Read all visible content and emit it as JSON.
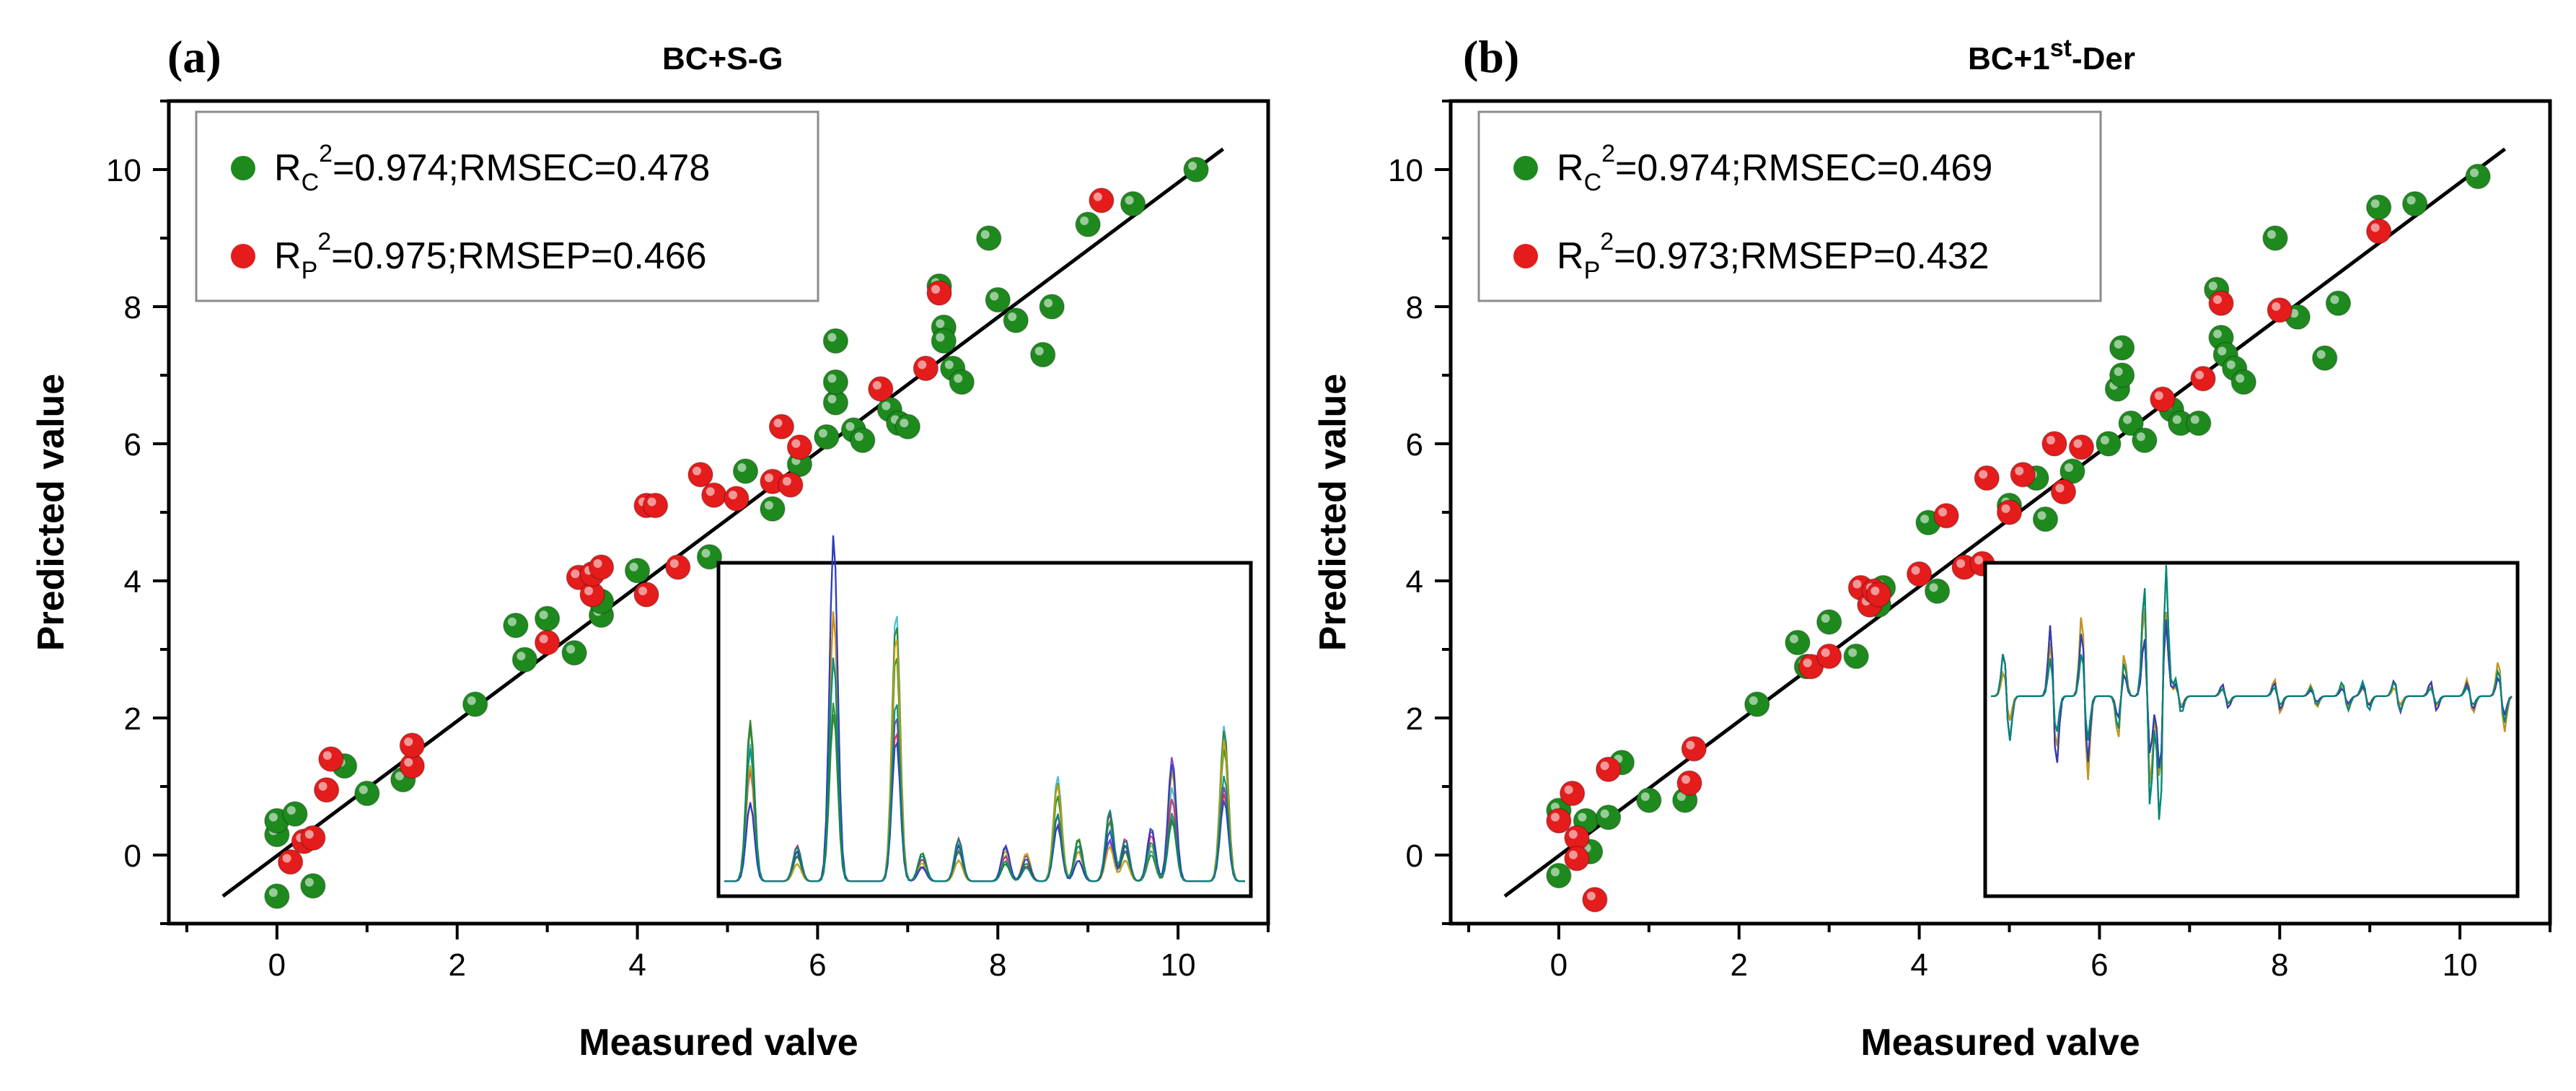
{
  "colors": {
    "calibration": "#1e8a1e",
    "prediction": "#e41c1c",
    "fit_line": "#000000",
    "frame": "#000000",
    "legend_border": "#8c8c8c"
  },
  "chart_data": [
    {
      "type": "scatter",
      "panel_letter": "(a)",
      "title": "BC+S-G",
      "xlabel": "Measured valve",
      "ylabel": "Predicted value",
      "xlim": [
        -1.2,
        11.0
      ],
      "ylim": [
        -1.0,
        11.0
      ],
      "xticks": [
        "0",
        "2",
        "4",
        "6",
        "8",
        "10"
      ],
      "yticks": [
        "0",
        "2",
        "4",
        "6",
        "8",
        "10"
      ],
      "fit_line": {
        "x": [
          -0.6,
          10.5
        ],
        "y": [
          -0.6,
          10.3
        ]
      },
      "legend": [
        {
          "series": "calibration",
          "label_main": "R",
          "label_sub": "C",
          "label_sup": "2",
          "label_rest": "=0.974;RMSEC=0.478"
        },
        {
          "series": "prediction",
          "label_main": "R",
          "label_sub": "P",
          "label_sup": "2",
          "label_rest": "=0.975;RMSEP=0.466"
        }
      ],
      "series": [
        {
          "name": "calibration",
          "color": "#1e8a1e",
          "points": [
            [
              0.0,
              0.3
            ],
            [
              0.0,
              0.5
            ],
            [
              0.2,
              0.6
            ],
            [
              0.0,
              -0.6
            ],
            [
              0.4,
              -0.45
            ],
            [
              0.75,
              1.3
            ],
            [
              1.0,
              0.9
            ],
            [
              1.4,
              1.1
            ],
            [
              2.2,
              2.2
            ],
            [
              2.65,
              3.35
            ],
            [
              2.75,
              2.85
            ],
            [
              3.0,
              3.45
            ],
            [
              3.3,
              2.95
            ],
            [
              3.6,
              3.5
            ],
            [
              3.6,
              3.7
            ],
            [
              4.0,
              4.15
            ],
            [
              4.8,
              4.35
            ],
            [
              5.2,
              5.6
            ],
            [
              5.5,
              5.05
            ],
            [
              5.8,
              5.7
            ],
            [
              6.1,
              6.1
            ],
            [
              6.2,
              6.6
            ],
            [
              6.2,
              6.9
            ],
            [
              6.2,
              7.5
            ],
            [
              6.4,
              6.2
            ],
            [
              6.5,
              6.05
            ],
            [
              6.8,
              6.5
            ],
            [
              6.9,
              6.3
            ],
            [
              7.0,
              6.25
            ],
            [
              7.35,
              8.3
            ],
            [
              7.4,
              7.7
            ],
            [
              7.4,
              7.5
            ],
            [
              7.5,
              7.1
            ],
            [
              7.6,
              6.9
            ],
            [
              7.9,
              9.0
            ],
            [
              8.0,
              8.1
            ],
            [
              8.2,
              7.8
            ],
            [
              8.5,
              7.3
            ],
            [
              8.6,
              8.0
            ],
            [
              9.0,
              9.2
            ],
            [
              9.5,
              9.5
            ],
            [
              10.2,
              10.0
            ]
          ]
        },
        {
          "name": "prediction",
          "color": "#e41c1c",
          "points": [
            [
              0.15,
              -0.1
            ],
            [
              0.3,
              0.2
            ],
            [
              0.4,
              0.25
            ],
            [
              0.55,
              0.95
            ],
            [
              0.6,
              1.4
            ],
            [
              1.5,
              1.3
            ],
            [
              1.5,
              1.6
            ],
            [
              3.0,
              3.1
            ],
            [
              3.35,
              4.05
            ],
            [
              3.5,
              3.8
            ],
            [
              3.5,
              4.1
            ],
            [
              3.6,
              4.2
            ],
            [
              4.1,
              3.8
            ],
            [
              4.1,
              5.1
            ],
            [
              4.2,
              5.1
            ],
            [
              4.45,
              4.2
            ],
            [
              4.7,
              5.55
            ],
            [
              4.85,
              5.25
            ],
            [
              5.1,
              5.2
            ],
            [
              5.5,
              5.45
            ],
            [
              5.6,
              6.25
            ],
            [
              5.7,
              5.4
            ],
            [
              5.8,
              5.95
            ],
            [
              6.7,
              6.8
            ],
            [
              7.2,
              7.1
            ],
            [
              7.35,
              8.2
            ],
            [
              9.15,
              9.55
            ]
          ]
        }
      ],
      "inset": {
        "description": "spectra",
        "peaks_at": [
          0.05,
          0.14,
          0.21,
          0.33,
          0.38,
          0.45,
          0.54,
          0.56,
          0.58,
          0.64,
          0.68,
          0.74,
          0.77,
          0.82,
          0.86,
          0.96
        ]
      }
    },
    {
      "type": "scatter",
      "panel_letter": "(b)",
      "title_main": "BC+1",
      "title_sup": "st",
      "title_rest": "-Der",
      "xlabel": "Measured valve",
      "ylabel": "Predicted value",
      "xlim": [
        -1.2,
        11.0
      ],
      "ylim": [
        -1.0,
        11.0
      ],
      "xticks": [
        "0",
        "2",
        "4",
        "6",
        "8",
        "10"
      ],
      "yticks": [
        "0",
        "2",
        "4",
        "6",
        "8",
        "10"
      ],
      "fit_line": {
        "x": [
          -0.6,
          10.5
        ],
        "y": [
          -0.6,
          10.3
        ]
      },
      "legend": [
        {
          "series": "calibration",
          "label_main": "R",
          "label_sub": "C",
          "label_sup": "2",
          "label_rest": "=0.974;RMSEC=0.469"
        },
        {
          "series": "prediction",
          "label_main": "R",
          "label_sub": "P",
          "label_sup": "2",
          "label_rest": "=0.973;RMSEP=0.432"
        }
      ],
      "series": [
        {
          "name": "calibration",
          "color": "#1e8a1e",
          "points": [
            [
              0.0,
              0.65
            ],
            [
              0.0,
              -0.3
            ],
            [
              0.3,
              0.5
            ],
            [
              0.35,
              0.05
            ],
            [
              0.55,
              0.55
            ],
            [
              0.7,
              1.35
            ],
            [
              1.0,
              0.8
            ],
            [
              1.4,
              0.8
            ],
            [
              2.2,
              2.2
            ],
            [
              2.65,
              3.1
            ],
            [
              2.75,
              2.75
            ],
            [
              3.0,
              3.4
            ],
            [
              3.3,
              2.9
            ],
            [
              3.55,
              3.65
            ],
            [
              3.6,
              3.9
            ],
            [
              4.1,
              4.85
            ],
            [
              4.2,
              3.85
            ],
            [
              5.0,
              5.1
            ],
            [
              5.3,
              5.5
            ],
            [
              5.4,
              4.9
            ],
            [
              5.7,
              5.6
            ],
            [
              6.1,
              6.0
            ],
            [
              6.2,
              6.8
            ],
            [
              6.25,
              7.0
            ],
            [
              6.25,
              7.4
            ],
            [
              6.35,
              6.3
            ],
            [
              6.5,
              6.05
            ],
            [
              6.8,
              6.5
            ],
            [
              6.9,
              6.3
            ],
            [
              7.1,
              6.3
            ],
            [
              7.3,
              8.25
            ],
            [
              7.35,
              7.55
            ],
            [
              7.4,
              7.3
            ],
            [
              7.5,
              7.1
            ],
            [
              7.6,
              6.9
            ],
            [
              7.95,
              9.0
            ],
            [
              8.2,
              7.85
            ],
            [
              8.5,
              7.25
            ],
            [
              8.65,
              8.05
            ],
            [
              9.1,
              9.45
            ],
            [
              9.5,
              9.5
            ],
            [
              10.2,
              9.9
            ]
          ]
        },
        {
          "name": "prediction",
          "color": "#e41c1c",
          "points": [
            [
              0.0,
              0.5
            ],
            [
              0.15,
              0.9
            ],
            [
              0.2,
              0.25
            ],
            [
              0.2,
              -0.05
            ],
            [
              0.4,
              -0.65
            ],
            [
              0.55,
              1.25
            ],
            [
              1.45,
              1.05
            ],
            [
              1.5,
              1.55
            ],
            [
              2.8,
              2.75
            ],
            [
              3.0,
              2.9
            ],
            [
              3.35,
              3.9
            ],
            [
              3.45,
              3.65
            ],
            [
              3.5,
              3.85
            ],
            [
              3.55,
              3.8
            ],
            [
              4.0,
              4.1
            ],
            [
              4.3,
              4.95
            ],
            [
              4.5,
              4.2
            ],
            [
              4.7,
              4.25
            ],
            [
              4.75,
              5.5
            ],
            [
              5.0,
              5.0
            ],
            [
              5.15,
              5.55
            ],
            [
              5.5,
              6.0
            ],
            [
              5.6,
              5.3
            ],
            [
              5.8,
              5.95
            ],
            [
              6.7,
              6.65
            ],
            [
              7.15,
              6.95
            ],
            [
              7.35,
              8.05
            ],
            [
              8.0,
              7.95
            ],
            [
              9.1,
              9.1
            ]
          ]
        }
      ],
      "inset": {
        "description": "first-derivative spectra"
      }
    }
  ]
}
